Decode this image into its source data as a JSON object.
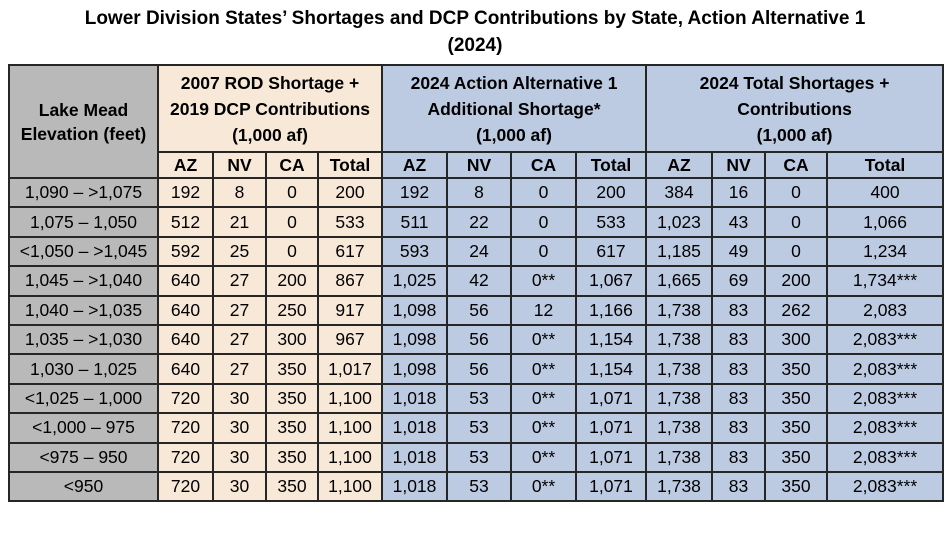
{
  "title": {
    "line1": "Lower Division States’ Shortages and DCP Contributions by State, Action Alternative 1",
    "line2": "(2024)"
  },
  "colors": {
    "elevation_column_bg": "#b9b9b9",
    "rod_dcp_group_bg": "#f8e8d8",
    "alternative_group_bg": "#bccbe2",
    "total_group_bg": "#bccbe2",
    "border": "#262626",
    "text": "#000000",
    "page_bg": "#ffffff"
  },
  "chart_data": {
    "type": "table",
    "title": "Lower Division States’ Shortages and DCP Contributions by State, Action Alternative 1 (2024)",
    "corner_header_lines": [
      "Lake Mead",
      "Elevation (feet)"
    ],
    "column_groups": [
      {
        "lines": [
          "2007 ROD Shortage +",
          "2019 DCP Contributions",
          "(1,000 af)"
        ],
        "label": "2007 ROD Shortage + 2019 DCP Contributions (1,000 af)",
        "tone": "cream"
      },
      {
        "lines": [
          "2024 Action Alternative 1",
          "Additional Shortage*",
          "(1,000 af)"
        ],
        "label": "2024 Action Alternative 1 Additional Shortage* (1,000 af)",
        "tone": "blue"
      },
      {
        "lines": [
          "2024 Total Shortages +",
          "Contributions",
          "(1,000 af)"
        ],
        "label": "2024 Total Shortages + Contributions (1,000 af)",
        "tone": "blue"
      }
    ],
    "sub_headers": [
      "AZ",
      "NV",
      "CA",
      "Total"
    ],
    "rows": [
      {
        "elevation": "1,090 – >1,075",
        "values": [
          "192",
          "8",
          "0",
          "200",
          "192",
          "8",
          "0",
          "200",
          "384",
          "16",
          "0",
          "400"
        ]
      },
      {
        "elevation": "1,075 – 1,050",
        "values": [
          "512",
          "21",
          "0",
          "533",
          "511",
          "22",
          "0",
          "533",
          "1,023",
          "43",
          "0",
          "1,066"
        ]
      },
      {
        "elevation": "<1,050 – >1,045",
        "values": [
          "592",
          "25",
          "0",
          "617",
          "593",
          "24",
          "0",
          "617",
          "1,185",
          "49",
          "0",
          "1,234"
        ]
      },
      {
        "elevation": "1,045 – >1,040",
        "values": [
          "640",
          "27",
          "200",
          "867",
          "1,025",
          "42",
          "0**",
          "1,067",
          "1,665",
          "69",
          "200",
          "1,734***"
        ]
      },
      {
        "elevation": "1,040 – >1,035",
        "values": [
          "640",
          "27",
          "250",
          "917",
          "1,098",
          "56",
          "12",
          "1,166",
          "1,738",
          "83",
          "262",
          "2,083"
        ]
      },
      {
        "elevation": "1,035 – >1,030",
        "values": [
          "640",
          "27",
          "300",
          "967",
          "1,098",
          "56",
          "0**",
          "1,154",
          "1,738",
          "83",
          "300",
          "2,083***"
        ]
      },
      {
        "elevation": "1,030 – 1,025",
        "values": [
          "640",
          "27",
          "350",
          "1,017",
          "1,098",
          "56",
          "0**",
          "1,154",
          "1,738",
          "83",
          "350",
          "2,083***"
        ]
      },
      {
        "elevation": "<1,025 – 1,000",
        "values": [
          "720",
          "30",
          "350",
          "1,100",
          "1,018",
          "53",
          "0**",
          "1,071",
          "1,738",
          "83",
          "350",
          "2,083***"
        ]
      },
      {
        "elevation": "<1,000 – 975",
        "values": [
          "720",
          "30",
          "350",
          "1,100",
          "1,018",
          "53",
          "0**",
          "1,071",
          "1,738",
          "83",
          "350",
          "2,083***"
        ]
      },
      {
        "elevation": "<975 – 950",
        "values": [
          "720",
          "30",
          "350",
          "1,100",
          "1,018",
          "53",
          "0**",
          "1,071",
          "1,738",
          "83",
          "350",
          "2,083***"
        ]
      },
      {
        "elevation": "<950",
        "values": [
          "720",
          "30",
          "350",
          "1,100",
          "1,018",
          "53",
          "0**",
          "1,071",
          "1,738",
          "83",
          "350",
          "2,083***"
        ]
      }
    ]
  }
}
